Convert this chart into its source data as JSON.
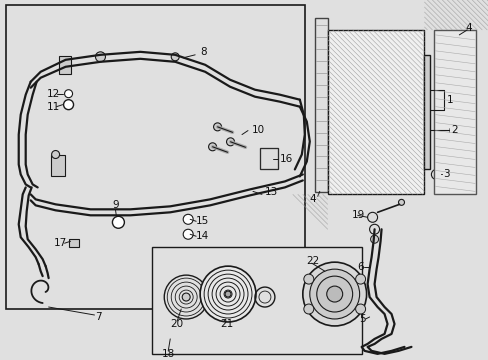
{
  "bg_color": "#e0e0e0",
  "line_color": "#1a1a1a",
  "fig_width": 4.89,
  "fig_height": 3.6,
  "dpi": 100
}
